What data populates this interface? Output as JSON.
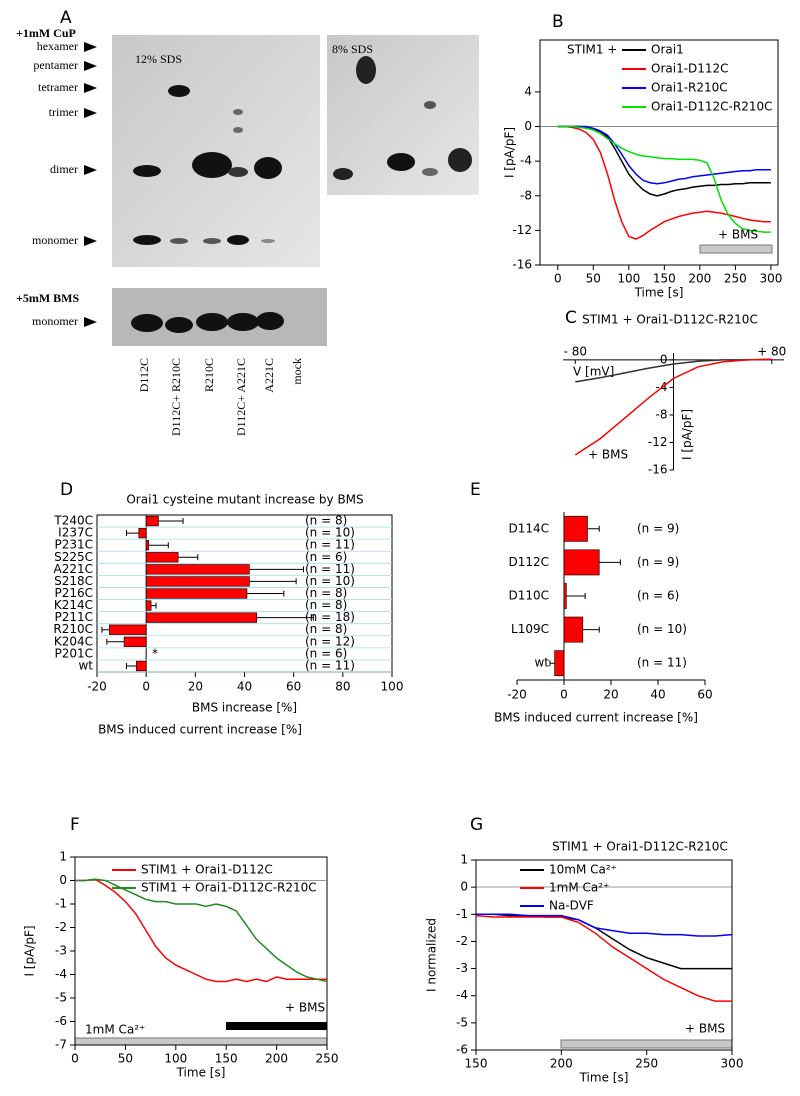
{
  "blot": {
    "panel": "A",
    "cup_label": "+1mM CuP",
    "gel_left_label": "12% SDS",
    "gel_right_label": "8% SDS",
    "band_labels": [
      "hexamer",
      "pentamer",
      "tetramer",
      "trimer",
      "dimer",
      "monomer"
    ],
    "bms_label": "+5mM BMS",
    "bms_band_label": "monomer",
    "lanes": [
      "D112C",
      "D112C+ R210C",
      "R210C",
      "D112C+ A221C",
      "A221C",
      "mock"
    ]
  },
  "chart_data": [
    {
      "panel": "B",
      "type": "line",
      "title": "STIM1 +",
      "x": [
        0,
        10,
        20,
        30,
        40,
        50,
        60,
        70,
        80,
        90,
        100,
        110,
        120,
        130,
        140,
        150,
        160,
        170,
        180,
        190,
        200,
        210,
        220,
        230,
        240,
        250,
        260,
        270,
        280,
        290,
        300
      ],
      "series": [
        {
          "name": "Orai1",
          "color": "#000000",
          "values": [
            0,
            0,
            0,
            0,
            -0.1,
            -0.3,
            -0.6,
            -1.2,
            -2.5,
            -4,
            -5.5,
            -6.5,
            -7.3,
            -7.8,
            -8,
            -7.8,
            -7.5,
            -7.3,
            -7.2,
            -7,
            -6.9,
            -6.8,
            -6.8,
            -6.7,
            -6.7,
            -6.6,
            -6.6,
            -6.5,
            -6.5,
            -6.5,
            -6.5
          ]
        },
        {
          "name": "Orai1-D112C",
          "color": "#ff0000",
          "values": [
            0,
            0,
            -0.1,
            -0.3,
            -0.7,
            -1.5,
            -3,
            -5.5,
            -8.5,
            -11,
            -12.7,
            -13,
            -12.6,
            -12,
            -11.5,
            -11,
            -10.7,
            -10.4,
            -10.2,
            -10,
            -9.9,
            -9.8,
            -9.9,
            -10,
            -10.2,
            -10.4,
            -10.6,
            -10.8,
            -10.9,
            -11,
            -11
          ]
        },
        {
          "name": "Orai1-R210C",
          "color": "#0000ff",
          "values": [
            0,
            0,
            0,
            0,
            0,
            -0.2,
            -0.5,
            -1,
            -2,
            -3.2,
            -4.5,
            -5.5,
            -6.2,
            -6.5,
            -6.6,
            -6.5,
            -6.3,
            -6.1,
            -6,
            -5.8,
            -5.7,
            -5.6,
            -5.5,
            -5.4,
            -5.3,
            -5.2,
            -5.1,
            -5.1,
            -5,
            -5,
            -5
          ]
        },
        {
          "name": "Orai1-D112C-R210C",
          "color": "#00e000",
          "values": [
            0,
            0,
            0,
            -0.1,
            -0.2,
            -0.4,
            -0.8,
            -1.4,
            -2,
            -2.5,
            -2.9,
            -3.2,
            -3.4,
            -3.5,
            -3.6,
            -3.7,
            -3.7,
            -3.8,
            -3.8,
            -3.8,
            -3.9,
            -4.2,
            -6,
            -8.5,
            -10.2,
            -11.2,
            -11.8,
            -12,
            -12.1,
            -12.2,
            -12.2
          ]
        }
      ],
      "xlim": [
        -25,
        310
      ],
      "xticks": [
        0,
        50,
        100,
        150,
        200,
        250,
        300
      ],
      "ylim": [
        -16,
        10
      ],
      "yticks": [
        -16,
        -12,
        -8,
        -4,
        0,
        4
      ],
      "xlabel": "Time [s]",
      "ylabel": "I [pA/pF]",
      "annotations": [
        "+ BMS"
      ]
    },
    {
      "panel": "C",
      "type": "line",
      "title": "STIM1 + Orai1-D112C-R210C",
      "axes_cross_at_zero": true,
      "x": [
        -80,
        -60,
        -40,
        -20,
        0,
        20,
        40,
        60,
        80
      ],
      "series": [
        {
          "color": "#333333",
          "values": [
            -3.2,
            -2.6,
            -1.9,
            -1.2,
            -0.6,
            -0.2,
            0,
            0,
            0.1
          ]
        },
        {
          "name": "+ BMS",
          "color": "#ff0000",
          "values": [
            -13.8,
            -11.5,
            -8.5,
            -5.5,
            -2.7,
            -1.0,
            -0.3,
            0,
            0.1
          ]
        }
      ],
      "xlim": [
        -90,
        90
      ],
      "xticks": [
        {
          "value": -80,
          "label": "- 80"
        },
        {
          "value": 80,
          "label": "+ 80"
        }
      ],
      "ylim": [
        -16,
        1
      ],
      "yticks": [
        -16,
        -12,
        -8,
        -4,
        0
      ],
      "xlabel": "V [mV]",
      "ylabel": "I [pA/pF]"
    },
    {
      "panel": "D",
      "type": "hbar",
      "title": "Orai1 cysteine mutant increase by BMS",
      "categories": [
        "T240C",
        "I237C",
        "P231C",
        "S225C",
        "A221C",
        "S218C",
        "P216C",
        "K214C",
        "P211C",
        "R210C",
        "K204C",
        "P201C",
        "wt"
      ],
      "values": [
        5,
        -3,
        1,
        13,
        42,
        42,
        41,
        2,
        45,
        -15,
        -9,
        null,
        -4
      ],
      "errors": [
        10,
        5,
        8,
        8,
        22,
        19,
        15,
        2,
        23,
        3,
        7,
        null,
        4
      ],
      "n_labels": [
        "(n = 8)",
        "(n = 10)",
        "(n = 11)",
        "(n = 6)",
        "(n = 11)",
        "(n = 10)",
        "(n = 8)",
        "(n = 8)",
        "(n = 18)",
        "(n = 8)",
        "(n = 12)",
        "(n = 6)",
        "(n = 11)"
      ],
      "color": "#ff0000",
      "grid": true,
      "xlim": [
        -20,
        100
      ],
      "xticks": [
        -20,
        0,
        20,
        40,
        60,
        80,
        100
      ],
      "xlabel": "BMS increase [%]",
      "caption": "BMS induced current increase [%]",
      "annotations": [
        "*"
      ]
    },
    {
      "panel": "E",
      "type": "hbar",
      "categories": [
        "D114C",
        "D112C",
        "D110C",
        "L109C",
        "wt"
      ],
      "values": [
        10,
        15,
        1,
        8,
        -4
      ],
      "errors": [
        5,
        9,
        8,
        7,
        2
      ],
      "n_labels": [
        "(n = 9)",
        "(n = 9)",
        "(n = 6)",
        "(n = 10)",
        "(n = 11)"
      ],
      "color": "#ff0000",
      "grid": false,
      "xlim": [
        -20,
        60
      ],
      "xticks": [
        -20,
        0,
        20,
        40,
        60
      ],
      "xlabel": "BMS induced current increase [%]"
    },
    {
      "panel": "F",
      "type": "line",
      "x": [
        0,
        10,
        20,
        30,
        40,
        50,
        60,
        70,
        80,
        90,
        100,
        110,
        120,
        130,
        140,
        150,
        160,
        170,
        180,
        190,
        200,
        210,
        220,
        230,
        240,
        250
      ],
      "series": [
        {
          "name": "STIM1 + Orai1-D112C",
          "color": "#ff0000",
          "values": [
            0,
            0,
            0.05,
            -0.2,
            -0.5,
            -0.9,
            -1.4,
            -2.1,
            -2.8,
            -3.3,
            -3.6,
            -3.8,
            -4,
            -4.2,
            -4.3,
            -4.3,
            -4.2,
            -4.3,
            -4.2,
            -4.3,
            -4.1,
            -4.2,
            -4.2,
            -4.2,
            -4.2,
            -4.2
          ]
        },
        {
          "name": "STIM1 + Orai1-D112C-R210C",
          "color": "#228b22",
          "values": [
            0,
            0,
            0.05,
            0,
            -0.2,
            -0.4,
            -0.6,
            -0.8,
            -0.9,
            -0.9,
            -1,
            -1,
            -1,
            -1.1,
            -1,
            -1.1,
            -1.3,
            -1.9,
            -2.5,
            -2.9,
            -3.3,
            -3.6,
            -3.9,
            -4.1,
            -4.2,
            -4.3
          ]
        }
      ],
      "xlim": [
        0,
        250
      ],
      "xticks": [
        0,
        50,
        100,
        150,
        200,
        250
      ],
      "ylim": [
        -7,
        1
      ],
      "yticks": [
        -7,
        -6,
        -5,
        -4,
        -3,
        -2,
        -1,
        0,
        1
      ],
      "xlabel": "Time [s]",
      "ylabel": "I [pA/pF]",
      "annotations": [
        "+ BMS",
        "1mM Ca²⁺"
      ]
    },
    {
      "panel": "G",
      "type": "line",
      "title": "STIM1 + Orai1-D112C-R210C",
      "x": [
        150,
        160,
        170,
        180,
        190,
        200,
        210,
        220,
        230,
        240,
        250,
        260,
        270,
        280,
        290,
        300
      ],
      "series": [
        {
          "name": "10mM Ca²⁺",
          "color": "#000000",
          "values": [
            -1,
            -1,
            -1.05,
            -1.05,
            -1.1,
            -1.1,
            -1.2,
            -1.5,
            -1.9,
            -2.3,
            -2.6,
            -2.8,
            -3,
            -3,
            -3,
            -3
          ]
        },
        {
          "name": "1mM Ca²⁺",
          "color": "#ff0000",
          "values": [
            -1.05,
            -1.1,
            -1.1,
            -1.1,
            -1.1,
            -1.1,
            -1.3,
            -1.7,
            -2.2,
            -2.6,
            -3,
            -3.4,
            -3.7,
            -4,
            -4.2,
            -4.2
          ]
        },
        {
          "name": "Na-DVF",
          "color": "#0000ff",
          "values": [
            -1,
            -1,
            -1,
            -1.05,
            -1.05,
            -1.05,
            -1.2,
            -1.5,
            -1.6,
            -1.7,
            -1.7,
            -1.75,
            -1.75,
            -1.8,
            -1.8,
            -1.75
          ]
        }
      ],
      "xlim": [
        150,
        300
      ],
      "xticks": [
        150,
        200,
        250,
        300
      ],
      "ylim": [
        -6,
        1
      ],
      "yticks": [
        -6,
        -5,
        -4,
        -3,
        -2,
        -1,
        0,
        1
      ],
      "xlabel": "Time [s]",
      "ylabel": "I normalized",
      "annotations": [
        "+ BMS"
      ]
    }
  ]
}
